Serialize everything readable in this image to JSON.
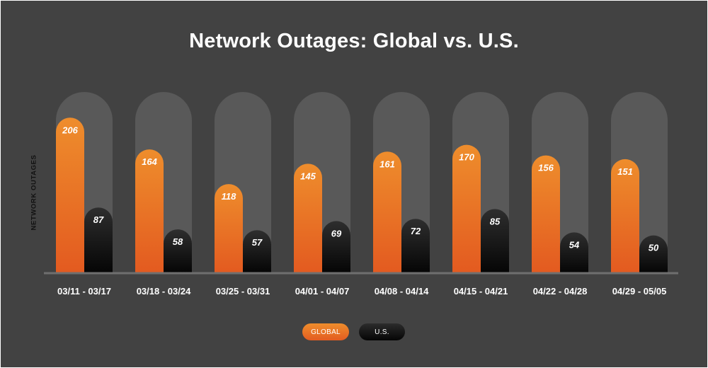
{
  "chart_data": {
    "type": "bar",
    "title": "Network Outages: Global vs. U.S.",
    "ylabel": "NETWORK OUTAGES",
    "categories": [
      "03/11 - 03/17",
      "03/18 - 03/24",
      "03/25 - 03/31",
      "04/01 - 04/07",
      "04/08 - 04/14",
      "04/15 - 04/21",
      "04/22 - 04/28",
      "04/29 - 05/05"
    ],
    "series": [
      {
        "name": "GLOBAL",
        "values": [
          206,
          164,
          118,
          145,
          161,
          170,
          156,
          151
        ],
        "color": "#e8742a"
      },
      {
        "name": "U.S.",
        "values": [
          87,
          58,
          57,
          69,
          72,
          85,
          54,
          50
        ],
        "color": "#111111"
      }
    ],
    "ylim": [
      0,
      240
    ],
    "grid": false,
    "legend_position": "bottom-center"
  }
}
